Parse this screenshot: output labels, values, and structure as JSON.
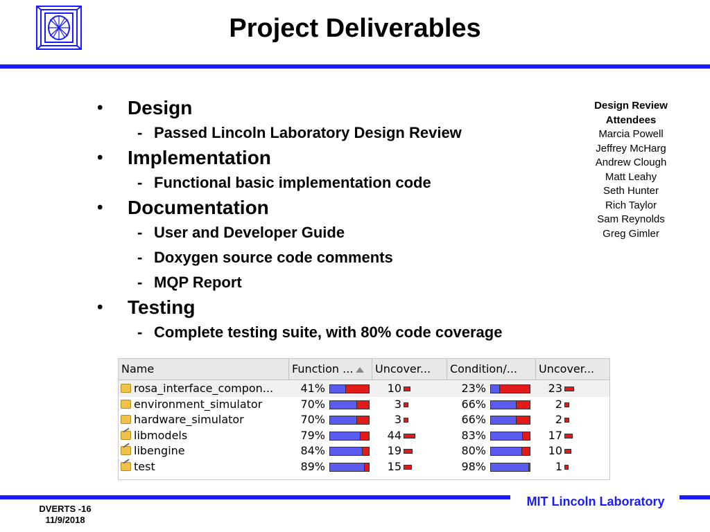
{
  "slide": {
    "title": "Project Deliverables",
    "bullets": [
      {
        "text": "Design",
        "subs": [
          "Passed Lincoln Laboratory Design Review"
        ]
      },
      {
        "text": "Implementation",
        "subs": [
          "Functional basic implementation code"
        ]
      },
      {
        "text": "Documentation",
        "subs": [
          "User and Developer Guide",
          "Doxygen source code comments",
          "MQP Report"
        ]
      },
      {
        "text": "Testing",
        "subs": [
          "Complete testing suite, with 80% code coverage"
        ]
      }
    ],
    "bullet_glyph": "•",
    "dash_glyph": "-"
  },
  "attendees": {
    "heading_line1": "Design Review",
    "heading_line2": "Attendees",
    "names": [
      "Marcia Powell",
      "Jeffrey McHarg",
      "Andrew Clough",
      "Matt Leahy",
      "Seth Hunter",
      "Rich Taylor",
      "Sam Reynolds",
      "Greg Gimler"
    ]
  },
  "coverage": {
    "columns": [
      "Name",
      "Function ...",
      "Uncover...",
      "Condition/...",
      "Uncover..."
    ],
    "rows": [
      {
        "name": "rosa_interface_compon...",
        "function_pct": "41%",
        "function_frac": 0.41,
        "uncovered_functions": "10",
        "condition_pct": "23%",
        "condition_frac": 0.23,
        "uncovered_conditions": "23"
      },
      {
        "name": "environment_simulator",
        "function_pct": "70%",
        "function_frac": 0.7,
        "uncovered_functions": "3",
        "condition_pct": "66%",
        "condition_frac": 0.66,
        "uncovered_conditions": "2"
      },
      {
        "name": "hardware_simulator",
        "function_pct": "70%",
        "function_frac": 0.7,
        "uncovered_functions": "3",
        "condition_pct": "66%",
        "condition_frac": 0.66,
        "uncovered_conditions": "2"
      },
      {
        "name": "libmodels",
        "function_pct": "79%",
        "function_frac": 0.79,
        "uncovered_functions": "44",
        "condition_pct": "83%",
        "condition_frac": 0.83,
        "uncovered_conditions": "17"
      },
      {
        "name": "libengine",
        "function_pct": "84%",
        "function_frac": 0.84,
        "uncovered_functions": "19",
        "condition_pct": "80%",
        "condition_frac": 0.8,
        "uncovered_conditions": "10"
      },
      {
        "name": "test",
        "function_pct": "89%",
        "function_frac": 0.89,
        "uncovered_functions": "15",
        "condition_pct": "98%",
        "condition_frac": 0.98,
        "uncovered_conditions": "1"
      }
    ]
  },
  "footer": {
    "doc_id": "DVERTS -16",
    "date": "11/9/2018",
    "brand": "MIT Lincoln Laboratory"
  },
  "colors": {
    "accent": "#1a1aff",
    "covered": "#5b5bf0",
    "uncovered": "#e31a1a"
  }
}
